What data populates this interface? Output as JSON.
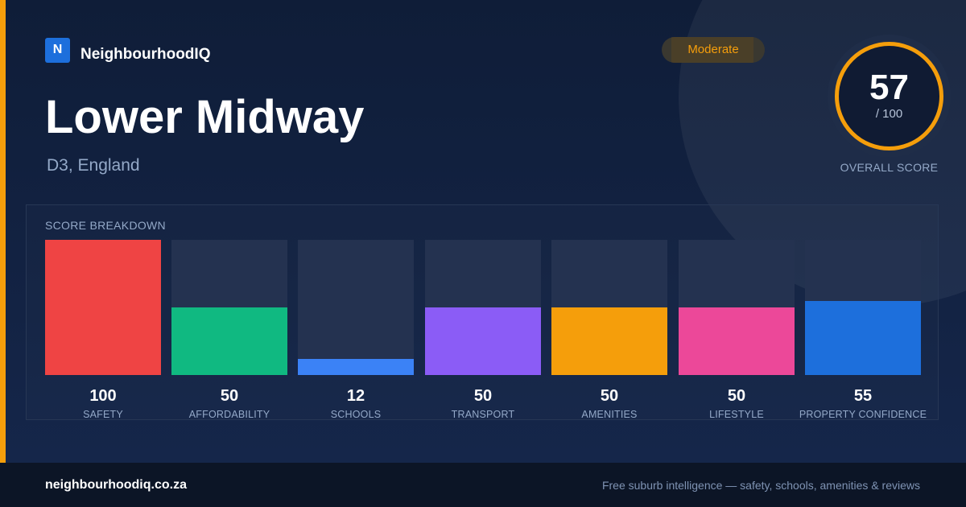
{
  "brand": {
    "logo_letter": "N",
    "name": "NeighbourhoodIQ"
  },
  "header": {
    "title": "Lower Midway",
    "subtitle": "D3, England"
  },
  "badge": {
    "label": "Moderate",
    "color": "#f59e0b"
  },
  "score": {
    "value": "57",
    "max_label": "/ 100",
    "fraction": 0.57,
    "caption": "OVERALL SCORE",
    "ring_color": "#f59e0b"
  },
  "breakdown": {
    "title": "SCORE BREAKDOWN",
    "items": [
      {
        "label": "SAFETY",
        "value": "100",
        "fraction": 1.0,
        "color": "#ef4444"
      },
      {
        "label": "AFFORDABILITY",
        "value": "50",
        "fraction": 0.5,
        "color": "#10b981"
      },
      {
        "label": "SCHOOLS",
        "value": "12",
        "fraction": 0.12,
        "color": "#3b82f6"
      },
      {
        "label": "TRANSPORT",
        "value": "50",
        "fraction": 0.5,
        "color": "#8b5cf6"
      },
      {
        "label": "AMENITIES",
        "value": "50",
        "fraction": 0.5,
        "color": "#f59e0b"
      },
      {
        "label": "LIFESTYLE",
        "value": "50",
        "fraction": 0.5,
        "color": "#ec4899"
      },
      {
        "label": "PROPERTY CONFIDENCE",
        "value": "55",
        "fraction": 0.55,
        "color": "#1d6fdc"
      }
    ]
  },
  "footer": {
    "domain": "neighbourhoodiq.co.za",
    "tagline": "Free suburb intelligence — safety, schools, amenities & reviews"
  }
}
